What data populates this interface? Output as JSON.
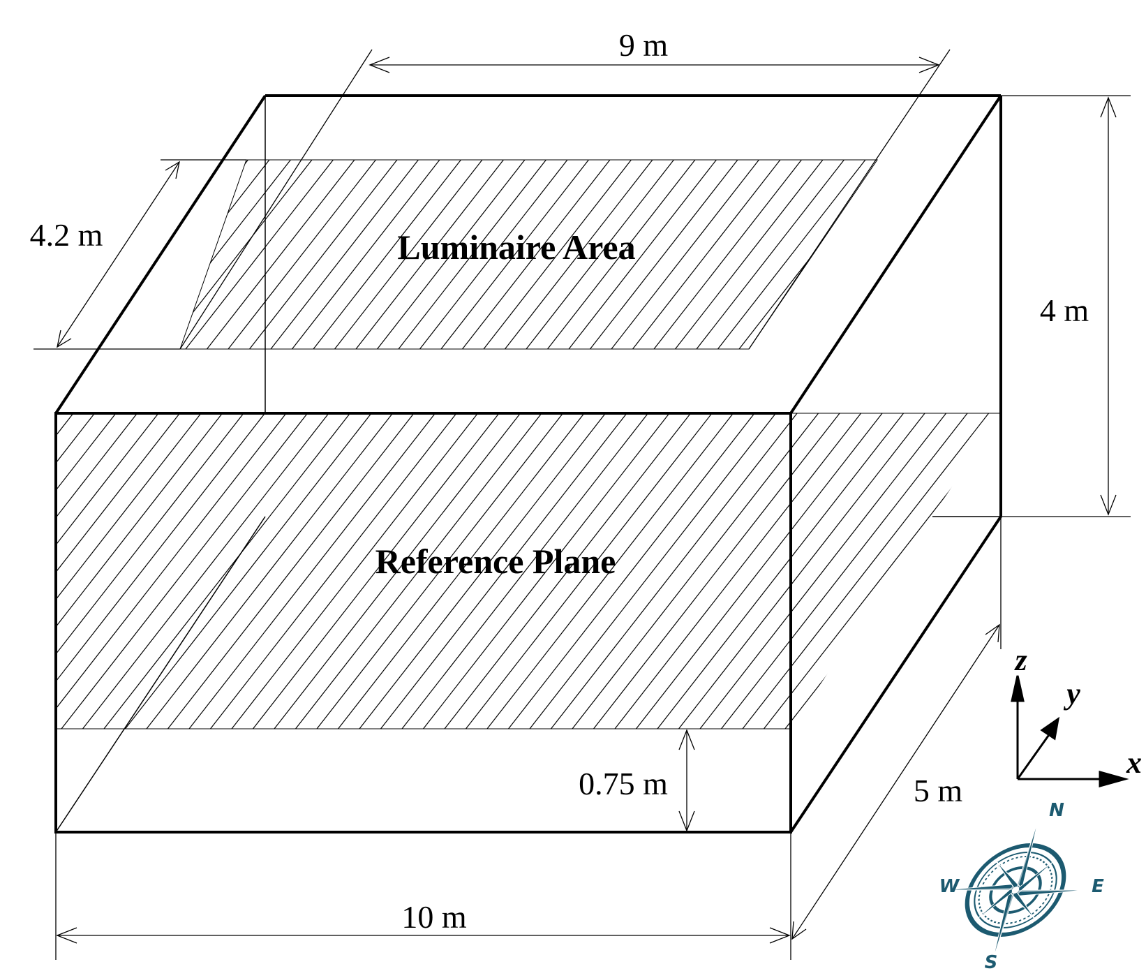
{
  "labels": {
    "luminaire_area": "Luminaire Area",
    "reference_plane": "Reference Plane"
  },
  "dimensions": {
    "top_width": "9 m",
    "top_depth": "4.2 m",
    "height": "4 m",
    "plane_height": "0.75 m",
    "room_depth": "5 m",
    "room_width": "10 m"
  },
  "axes": {
    "x": "x",
    "y": "y",
    "z": "z"
  },
  "compass": {
    "north": "N",
    "east": "E",
    "south": "S",
    "west": "W",
    "color": "#1c5a70"
  }
}
